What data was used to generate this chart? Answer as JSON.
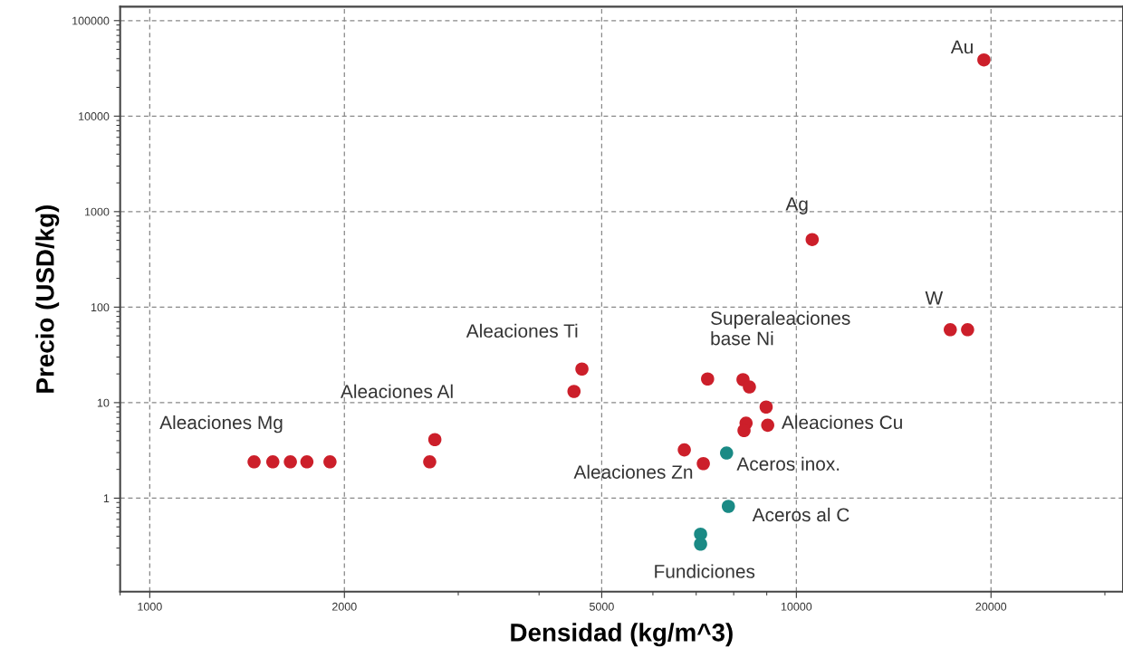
{
  "chart_data": {
    "type": "scatter",
    "xlabel": "Densidad (kg/m^3)",
    "ylabel": "Precio (USD/kg)",
    "log": "xy",
    "grid": true,
    "marker": "circle",
    "xlim": [
      900,
      32000
    ],
    "ylim": [
      0.105,
      140000
    ],
    "xticks": [
      1000,
      2000,
      5000,
      10000,
      20000
    ],
    "yticks": [
      1,
      10,
      100,
      1000,
      10000,
      100000
    ],
    "series": [
      {
        "color": "#cc1f2a",
        "x": [
          1450,
          1550,
          1650,
          1750,
          1900,
          2760,
          2710,
          4660,
          4530,
          6710,
          7180,
          7290,
          8270,
          8460,
          8980,
          8360,
          8300,
          9030,
          10580,
          17300,
          18400,
          19500
        ],
        "values": [
          2.4,
          2.4,
          2.4,
          2.4,
          2.4,
          4.1,
          2.4,
          22.5,
          13.1,
          3.2,
          2.3,
          17.7,
          17.4,
          14.6,
          9.0,
          6.1,
          5.1,
          5.8,
          510,
          58,
          58,
          38800
        ]
      },
      {
        "color": "#1a8a85",
        "x": [
          7800,
          7850,
          7110,
          7110
        ],
        "values": [
          2.97,
          0.82,
          0.42,
          0.33
        ]
      }
    ],
    "annotations": [
      {
        "text": "Au",
        "x": 19500,
        "y": 38800
      },
      {
        "text": "Ag",
        "x": 10580,
        "y": 510
      },
      {
        "text": "W",
        "x": 17300,
        "y": 58
      },
      {
        "text": "Superaleaciones\nbase Ni",
        "x": 7290,
        "y": 17.7
      },
      {
        "text": "Aleaciones Ti",
        "x": 4660,
        "y": 22.5
      },
      {
        "text": "Aleaciones Al",
        "x": 2760,
        "y": 4.1
      },
      {
        "text": "Aleaciones Mg",
        "x": 1650,
        "y": 2.4
      },
      {
        "text": "Aleaciones Cu",
        "x": 9030,
        "y": 5.8
      },
      {
        "text": "Aceros inox.",
        "x": 7800,
        "y": 2.97
      },
      {
        "text": "Aleaciones Zn",
        "x": 7180,
        "y": 2.3
      },
      {
        "text": "Aceros al C",
        "x": 7850,
        "y": 0.82
      },
      {
        "text": "Fundiciones",
        "x": 7110,
        "y": 0.33
      }
    ]
  }
}
